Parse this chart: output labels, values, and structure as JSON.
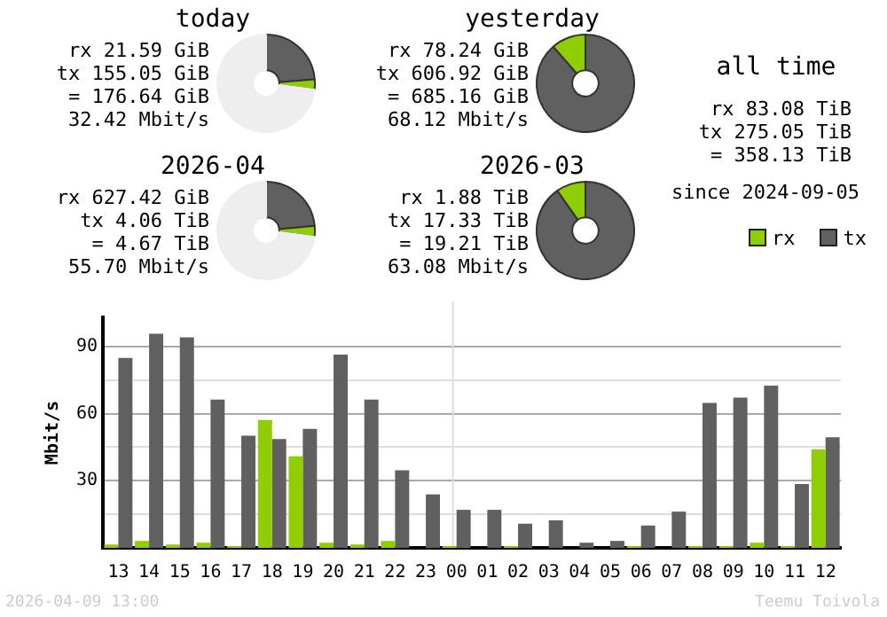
{
  "chart_data": [
    {
      "type": "donut",
      "title": "today",
      "categories": [
        null,
        null,
        null
      ],
      "values": [
        23.7,
        3.3,
        73
      ],
      "colors": [
        "#606060",
        "#8fce00",
        "#eeeeee"
      ],
      "annotations": [
        "rx 21.59 GiB",
        "tx 155.05 GiB",
        "= 176.64 GiB",
        "32.42 Mbit/s"
      ]
    },
    {
      "type": "donut",
      "title": "yesterday",
      "categories": [
        null,
        null
      ],
      "values": [
        88.58,
        11.42
      ],
      "colors": [
        "#606060",
        "#8fce00"
      ],
      "annotations": [
        "rx 78.24 GiB",
        "tx 606.92 GiB",
        "= 685.16 GiB",
        "68.12 Mbit/s"
      ]
    },
    {
      "type": "other",
      "title": "all time",
      "annotations": [
        "rx 83.08 TiB",
        "tx 275.05 TiB",
        "= 358.13 TiB",
        "since 2024-09-05"
      ]
    },
    {
      "type": "donut",
      "title": "2026-04",
      "categories": [
        null,
        null,
        null
      ],
      "values": [
        23.5,
        3.5,
        73
      ],
      "colors": [
        "#606060",
        "#8fce00",
        "#eeeeee"
      ],
      "annotations": [
        "rx 627.42 GiB",
        "tx 4.06 TiB",
        "= 4.67 TiB",
        "55.70 Mbit/s"
      ]
    },
    {
      "type": "donut",
      "title": "2026-03",
      "categories": [
        null,
        null
      ],
      "values": [
        90.21,
        9.79
      ],
      "colors": [
        "#606060",
        "#8fce00"
      ],
      "annotations": [
        "rx 1.88 TiB",
        "tx 17.33 TiB",
        "= 19.21 TiB",
        "63.08 Mbit/s"
      ]
    },
    {
      "type": "bar",
      "ylabel": "Mbit/s",
      "categories": [
        "13",
        "14",
        "15",
        "16",
        "17",
        "18",
        "19",
        "20",
        "21",
        "22",
        "23",
        "00",
        "01",
        "02",
        "03",
        "04",
        "05",
        "06",
        "07",
        "08",
        "09",
        "10",
        "11",
        "12"
      ],
      "series": [
        {
          "name": "rx",
          "color": "#8fce00",
          "values": [
            1.5,
            3.1,
            1.5,
            2.3,
            0.8,
            57.1,
            40.9,
            2.3,
            1.5,
            3.1,
            0,
            0.8,
            0,
            0.8,
            0,
            0,
            0,
            0.8,
            0,
            0.8,
            0.8,
            2.3,
            0.8,
            44.0
          ]
        },
        {
          "name": "tx",
          "color": "#606060",
          "values": [
            84.9,
            95.7,
            94.1,
            66.3,
            50.1,
            48.6,
            53.2,
            86.4,
            66.3,
            34.7,
            23.9,
            17.0,
            17.0,
            10.8,
            12.3,
            2.3,
            3.1,
            10.0,
            16.2,
            64.8,
            67.1,
            72.5,
            28.5,
            49.4
          ]
        }
      ],
      "ylim": [
        0,
        103
      ],
      "yticks": [
        {
          "value": 15,
          "label": null
        },
        30,
        {
          "value": 45,
          "label": null
        },
        60,
        {
          "value": 75,
          "label": null
        },
        90
      ],
      "grid": "y",
      "legend": "top right",
      "ref_lines": [
        {
          "axis": "x",
          "value": "00"
        }
      ],
      "annotations": [
        "2026-04-09 13:00",
        "Teemu Toivola"
      ]
    }
  ]
}
